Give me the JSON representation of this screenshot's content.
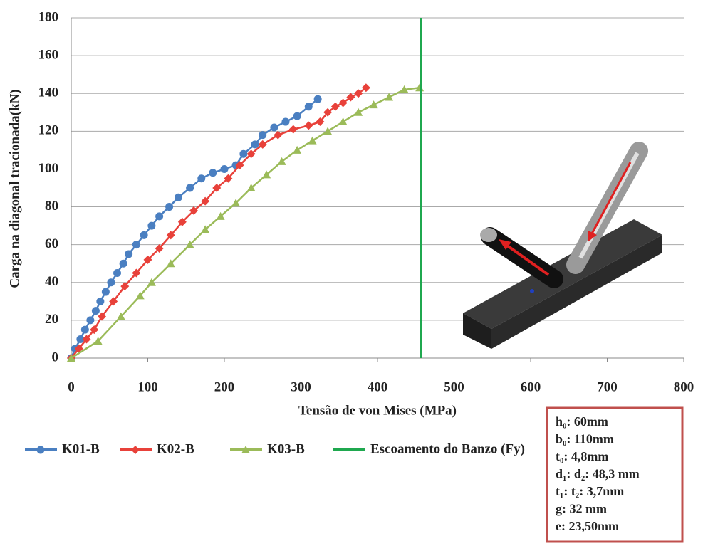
{
  "chart_data": {
    "type": "line",
    "x_label": "Tensão de von Mises (MPa)",
    "y_label": "Carga  na diagonal tracionada(kN)",
    "xlim": [
      0,
      800
    ],
    "xticks": [
      0,
      100,
      200,
      300,
      400,
      500,
      600,
      700,
      800
    ],
    "ylim": [
      0,
      180
    ],
    "yticks": [
      0,
      20,
      40,
      60,
      80,
      100,
      120,
      140,
      160,
      180
    ],
    "grid": true,
    "legend": "bottom",
    "series": [
      {
        "name": "K01-B",
        "color": "#4a7fc1",
        "marker": "circle",
        "x": [
          0,
          5,
          12,
          18,
          25,
          32,
          38,
          45,
          52,
          60,
          68,
          75,
          85,
          95,
          105,
          115,
          128,
          140,
          155,
          170,
          185,
          200,
          215,
          225,
          240,
          250,
          265,
          280,
          295,
          310,
          322
        ],
        "values": [
          0,
          5,
          10,
          15,
          20,
          25,
          30,
          35,
          40,
          45,
          50,
          55,
          60,
          65,
          70,
          75,
          80,
          85,
          90,
          95,
          98,
          100,
          102,
          108,
          113,
          118,
          122,
          125,
          128,
          133,
          137
        ]
      },
      {
        "name": "K02-B",
        "color": "#e8413a",
        "marker": "diamond",
        "x": [
          0,
          10,
          20,
          30,
          40,
          55,
          70,
          85,
          100,
          115,
          130,
          145,
          160,
          175,
          190,
          205,
          220,
          235,
          250,
          270,
          290,
          310,
          325,
          335,
          345,
          355,
          365,
          375,
          385
        ],
        "values": [
          0,
          5,
          10,
          15,
          22,
          30,
          38,
          45,
          52,
          58,
          65,
          72,
          78,
          83,
          90,
          95,
          102,
          108,
          113,
          118,
          121,
          123,
          125,
          130,
          133,
          135,
          138,
          140,
          143
        ]
      },
      {
        "name": "K03-B",
        "color": "#9bbb59",
        "marker": "triangle",
        "x": [
          0,
          35,
          65,
          90,
          105,
          130,
          155,
          175,
          195,
          215,
          235,
          255,
          275,
          295,
          315,
          335,
          355,
          375,
          395,
          415,
          435,
          455
        ],
        "values": [
          0,
          9,
          22,
          33,
          40,
          50,
          60,
          68,
          75,
          82,
          90,
          97,
          104,
          110,
          115,
          120,
          125,
          130,
          134,
          138,
          142,
          143
        ]
      },
      {
        "name": "Escoamento do Banzo (Fy)",
        "color": "#1fa84f",
        "marker": "none",
        "x": [
          457,
          457
        ],
        "values": [
          0,
          180
        ]
      }
    ],
    "parameters": [
      "h₀: 60mm",
      "b₀: 110mm",
      "t₀: 4,8mm",
      "d₁: d₂: 48,3 mm",
      "t₁: t₂: 3,7mm",
      "g: 32 mm",
      "e: 23,50mm"
    ]
  }
}
